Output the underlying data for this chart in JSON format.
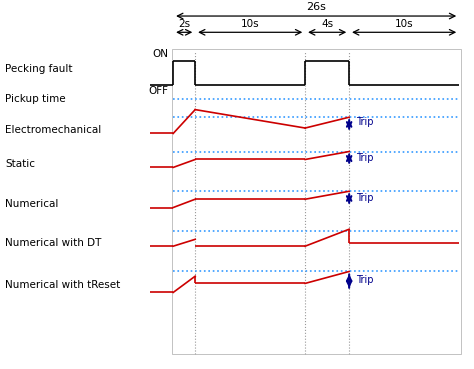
{
  "title": "",
  "background_color": "#ffffff",
  "time_segments": [
    0,
    2,
    12,
    16,
    26
  ],
  "segment_labels": [
    "2s",
    "10s",
    "4s",
    "10s"
  ],
  "total_label": "26s",
  "row_labels": [
    "Pecking fault",
    "Pickup time",
    "Electromechanical",
    "Static",
    "Numerical",
    "Numerical with DT",
    "Numerical with tReset"
  ],
  "on_off_labels": [
    "ON",
    "OFF"
  ],
  "trip_label": "Trip",
  "colors": {
    "red": "#cc0000",
    "blue_dotted": "#3399ff",
    "dark_blue": "#00008b",
    "black": "#000000",
    "gray_vert": "#999999"
  },
  "fig_width": 4.74,
  "fig_height": 3.69,
  "dpi": 100
}
